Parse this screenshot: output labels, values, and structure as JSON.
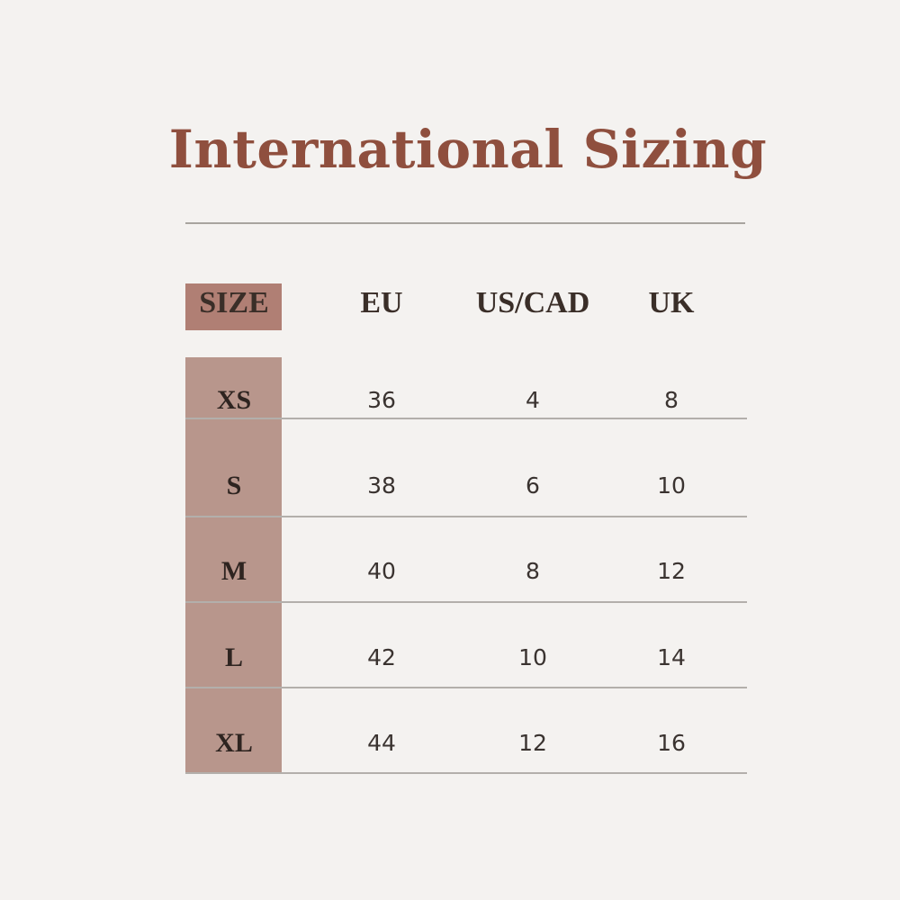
{
  "title": "International Sizing",
  "headers": [
    "SIZE",
    "EU",
    "US/CAD",
    "UK"
  ],
  "rows": [
    [
      "XS",
      "36",
      "4",
      "8"
    ],
    [
      "S",
      "38",
      "6",
      "10"
    ],
    [
      "M",
      "40",
      "8",
      "12"
    ],
    [
      "L",
      "42",
      "10",
      "14"
    ],
    [
      "XL",
      "44",
      "12",
      "16"
    ]
  ],
  "colors": {
    "title": "#8f4f3e",
    "size_header": "#b07f74",
    "size_column": "#b8968c",
    "background": "#f4f2f0"
  }
}
